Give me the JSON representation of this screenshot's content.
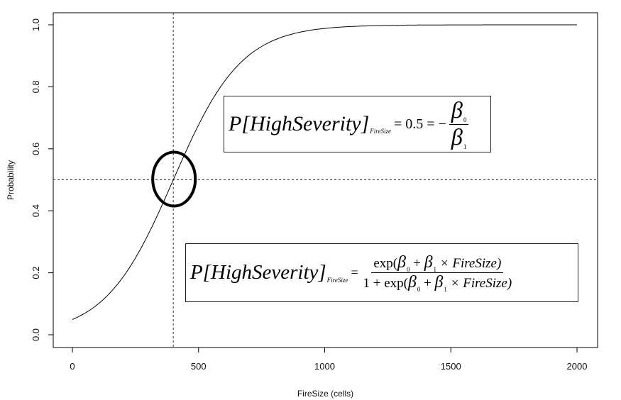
{
  "chart_data": {
    "type": "line",
    "title": "",
    "xlabel": "FireSize (cells)",
    "ylabel": "Probability",
    "xlim": [
      0,
      2000
    ],
    "ylim": [
      0,
      1
    ],
    "xticks": [
      0,
      500,
      1000,
      1500,
      2000
    ],
    "yticks": [
      0.0,
      0.2,
      0.4,
      0.6,
      0.8,
      1.0
    ],
    "xtick_labels": [
      "0",
      "500",
      "1000",
      "1500",
      "2000"
    ],
    "ytick_labels": [
      "0.0",
      "0.2",
      "0.4",
      "0.6",
      "0.8",
      "1.0"
    ],
    "grid": false,
    "series": [
      {
        "logistic": {
          "beta0": -2.96,
          "beta1": 0.0074
        },
        "x_range": [
          0,
          2000
        ],
        "color": "#000000"
      }
    ],
    "reference_lines": {
      "vertical_x": 400,
      "horizontal_y": 0.5,
      "style": "dashed"
    },
    "highlight_ellipse": {
      "center_x": 400,
      "center_y": 0.5
    },
    "annotations": [
      {
        "lhs": "P[HighSeverity]",
        "subscript": "FireSize",
        "middle": "= 0.5 = −",
        "numerator": "β",
        "numerator_sub": "0",
        "denominator": "β",
        "denominator_sub": "1"
      },
      {
        "lhs": "P[HighSeverity]",
        "subscript": "FireSize",
        "middle": "=",
        "num_open": "exp(",
        "num_b0": "β",
        "num_b0_sub": "0",
        "num_plus": " + ",
        "num_b1": "β",
        "num_b1_sub": "1",
        "num_rest": " × FireSize)",
        "den_open": "1 + exp(",
        "den_b0": "β",
        "den_b0_sub": "0",
        "den_plus": " + ",
        "den_b1": "β",
        "den_b1_sub": "1",
        "den_rest": " × FireSize)"
      }
    ]
  }
}
